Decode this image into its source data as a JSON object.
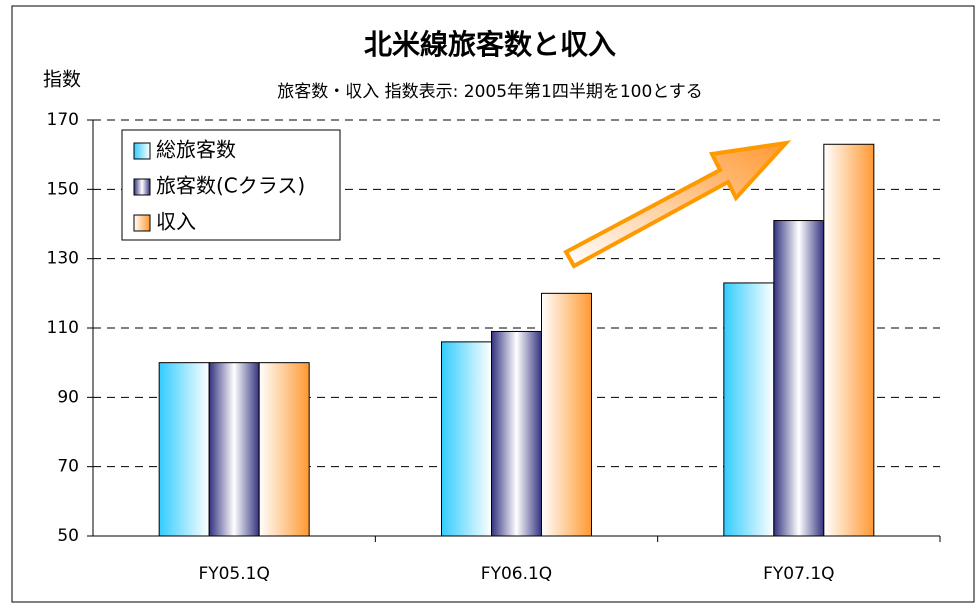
{
  "chart_data": {
    "type": "bar",
    "title": "北米線旅客数と収入",
    "subtitle": "旅客数・収入 指数表示: 2005年第1四半期を100とする",
    "y_label": "指数",
    "categories": [
      "FY05.1Q",
      "FY06.1Q",
      "FY07.1Q"
    ],
    "series": [
      {
        "name": "総旅客数",
        "color": "#33ccff",
        "values": [
          100,
          106,
          123
        ]
      },
      {
        "name": "旅客数(Cクラス)",
        "color": "#333380",
        "values": [
          100,
          109,
          141
        ]
      },
      {
        "name": "収入",
        "color": "#ff9933",
        "values": [
          100,
          120,
          163
        ]
      }
    ],
    "ylim": [
      50,
      170
    ],
    "yticks": [
      50,
      70,
      90,
      110,
      130,
      150,
      170
    ],
    "grid": true,
    "legend": "upper left"
  }
}
